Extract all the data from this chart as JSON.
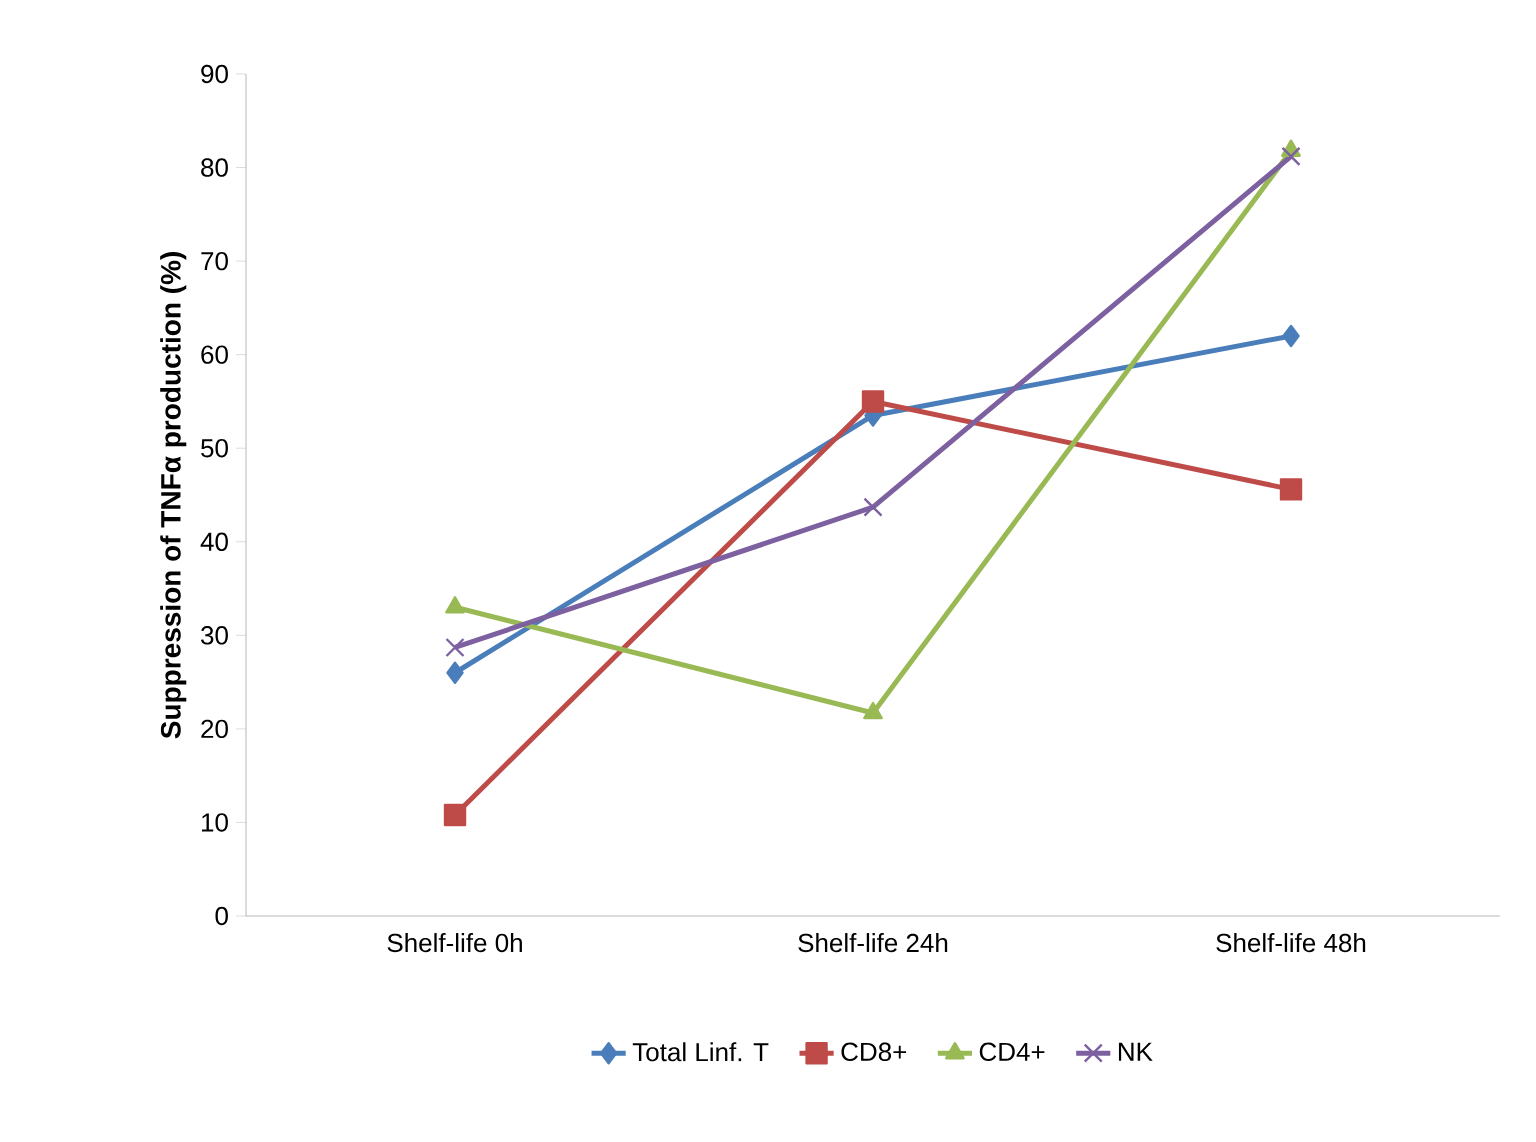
{
  "chart_data": {
    "type": "line",
    "ylabel": "Suppression of TNFα production (%)",
    "categories": [
      "Shelf-life 0h",
      "Shelf-life 24h",
      "Shelf-life 48h"
    ],
    "series": [
      {
        "name": "Total Linf. T",
        "color": "#4a7ebb",
        "marker": "diamond",
        "values": [
          26,
          53.5,
          62
        ]
      },
      {
        "name": "CD8+",
        "color": "#be4b48",
        "marker": "square",
        "values": [
          10.8,
          55,
          45.6
        ]
      },
      {
        "name": "CD4+",
        "color": "#98b954",
        "marker": "triangle",
        "values": [
          33,
          21.7,
          81.8
        ]
      },
      {
        "name": "NK",
        "color": "#7d60a0",
        "marker": "cross",
        "values": [
          28.7,
          43.7,
          81.2
        ]
      }
    ],
    "ylim": [
      0,
      90
    ],
    "yticks": [
      0,
      10,
      20,
      30,
      40,
      50,
      60,
      70,
      80,
      90
    ],
    "grid": false,
    "legend": "bottom",
    "line_style": "solid"
  }
}
